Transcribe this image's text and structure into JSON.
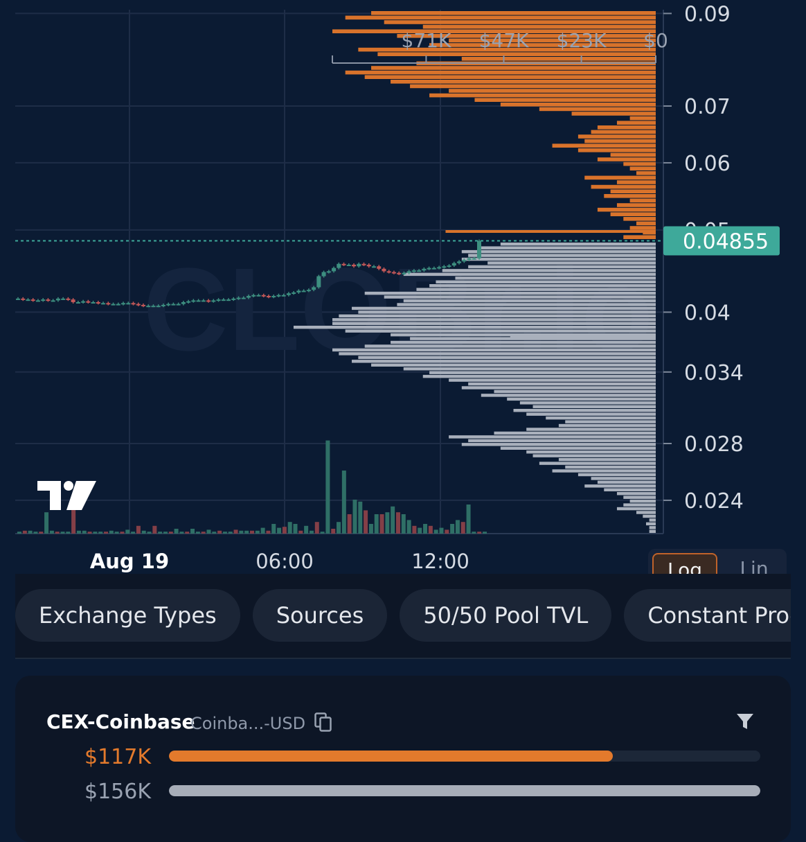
{
  "watermark": "CLOBr.io",
  "chart_data": {
    "type": "candlestick",
    "price_axis": {
      "scale": "log",
      "ticks": [
        "0.09",
        "0.07",
        "0.06",
        "0.05",
        "0.04",
        "0.034",
        "0.028",
        "0.024"
      ],
      "tick_values": [
        0.09,
        0.07,
        0.06,
        0.05,
        0.04,
        0.034,
        0.028,
        0.024
      ],
      "current_price_label": "0.04855",
      "current_price": 0.04855
    },
    "time_axis": {
      "labels": [
        "Aug 19",
        "06:00",
        "12:00"
      ]
    },
    "depth_axis": {
      "labels": [
        "$71K",
        "$47K",
        "$23K",
        "$0"
      ],
      "values": [
        71000,
        47000,
        23000,
        0
      ],
      "max": 100000
    },
    "candles_close": [
      0.0415,
      0.0414,
      0.0414,
      0.0413,
      0.0413,
      0.0414,
      0.0413,
      0.0413,
      0.0415,
      0.0415,
      0.0414,
      0.0411,
      0.0411,
      0.0412,
      0.0411,
      0.0411,
      0.041,
      0.041,
      0.0409,
      0.0409,
      0.0409,
      0.041,
      0.041,
      0.0409,
      0.0408,
      0.0407,
      0.0407,
      0.0407,
      0.0407,
      0.0408,
      0.0409,
      0.0409,
      0.0409,
      0.0411,
      0.0412,
      0.0413,
      0.0413,
      0.0413,
      0.0412,
      0.0413,
      0.0414,
      0.0414,
      0.0414,
      0.0415,
      0.0416,
      0.0416,
      0.0418,
      0.0419,
      0.0419,
      0.0418,
      0.0417,
      0.0418,
      0.0419,
      0.0419,
      0.0421,
      0.0422,
      0.0424,
      0.0424,
      0.0425,
      0.0428,
      0.0441,
      0.0446,
      0.0447,
      0.0451,
      0.0456,
      0.0455,
      0.0455,
      0.0453,
      0.0456,
      0.0455,
      0.0453,
      0.0453,
      0.045,
      0.0447,
      0.0446,
      0.0445,
      0.0444,
      0.0445,
      0.0447,
      0.0448,
      0.0448,
      0.045,
      0.0451,
      0.0451,
      0.0452,
      0.0453,
      0.0454,
      0.0457,
      0.0459,
      0.0461,
      0.0463,
      0.0463,
      0.04855
    ],
    "volume": [
      2,
      3,
      3,
      2,
      2,
      22,
      3,
      2,
      2,
      2,
      28,
      3,
      3,
      2,
      2,
      2,
      2,
      3,
      2,
      2,
      4,
      2,
      8,
      3,
      2,
      8,
      2,
      2,
      2,
      5,
      2,
      2,
      5,
      2,
      2,
      4,
      2,
      3,
      2,
      2,
      4,
      3,
      3,
      3,
      3,
      6,
      3,
      10,
      6,
      7,
      12,
      10,
      3,
      8,
      3,
      12,
      2,
      96,
      5,
      12,
      65,
      20,
      35,
      33,
      24,
      10,
      20,
      20,
      22,
      28,
      22,
      20,
      14,
      8,
      6,
      10,
      8,
      4,
      6,
      4,
      10,
      14,
      12,
      30,
      2,
      2,
      2
    ],
    "bid_depth": [
      88,
      96,
      84,
      72,
      100,
      80,
      64,
      70,
      92,
      86,
      60,
      74,
      88,
      96,
      90,
      82,
      76,
      64,
      70,
      56,
      48,
      36,
      26,
      8,
      12,
      18,
      20,
      24,
      22,
      32,
      24,
      14,
      18,
      10,
      8,
      6,
      22,
      12,
      20,
      14,
      16,
      8,
      12,
      18,
      14,
      10,
      6,
      8,
      4,
      10
    ],
    "ask_depth": [
      48,
      54,
      60,
      58,
      60,
      52,
      58,
      66,
      78,
      62,
      68,
      70,
      74,
      90,
      84,
      78,
      80,
      94,
      92,
      98,
      100,
      100,
      112,
      96,
      82,
      76,
      82,
      90,
      100,
      98,
      92,
      94,
      88,
      78,
      70,
      72,
      64,
      58,
      60,
      50,
      54,
      46,
      42,
      38,
      44,
      40,
      34,
      28,
      30,
      40,
      50,
      64,
      58,
      60,
      48,
      40,
      38,
      30,
      36,
      28,
      32,
      24,
      20,
      18,
      22,
      16,
      12,
      10,
      8,
      10,
      12,
      6,
      4,
      2,
      3,
      2,
      2
    ],
    "bid_wall": 65000,
    "ask_wall": 45000,
    "colors": {
      "up": "#3d8f80",
      "down": "#c45858",
      "bids": "#d9732b",
      "asks": "#a9b0bc",
      "price": "#3ea99a",
      "volume_up": "#2f6f66",
      "volume_down": "#843f47"
    }
  },
  "scale_toggle": {
    "options": [
      "Log",
      "Lin"
    ],
    "selected": "Log"
  },
  "tabs": [
    {
      "label": "Exchange Types"
    },
    {
      "label": "Sources"
    },
    {
      "label": "50/50 Pool TVL"
    },
    {
      "label": "Constant Product"
    }
  ],
  "source_card": {
    "title": "CEX-Coinbase",
    "pair": "Coinba...-USD",
    "copy_icon": "copy-icon",
    "filter_icon": "filter-icon",
    "bid_label": "$117K",
    "ask_label": "$156K",
    "bid_ratio": 0.75,
    "ask_ratio": 1.0
  }
}
